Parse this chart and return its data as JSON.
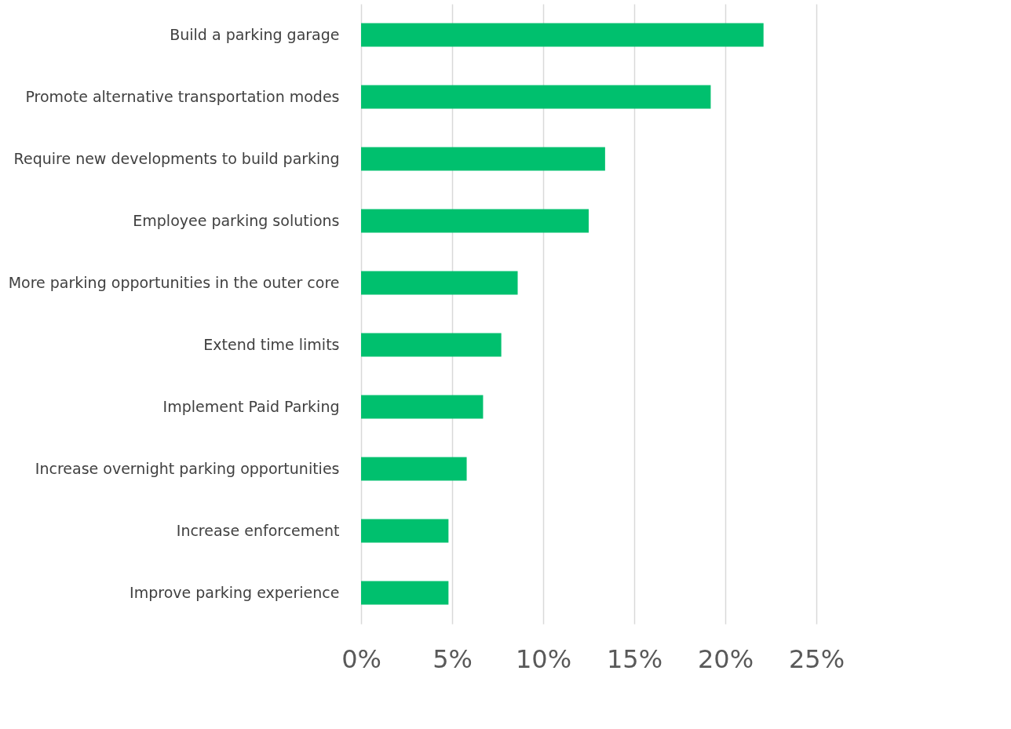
{
  "chart_data": {
    "type": "bar",
    "orientation": "horizontal",
    "categories": [
      "Build a parking garage",
      "Promote alternative transportation modes",
      "Require new developments to build parking",
      "Employee parking solutions",
      "More parking opportunities in the outer core",
      "Extend time limits",
      "Implement Paid Parking",
      "Increase overnight parking opportunities",
      "Increase enforcement",
      "Improve parking experience"
    ],
    "values": [
      22.1,
      19.2,
      13.4,
      12.5,
      8.6,
      7.7,
      6.7,
      5.8,
      4.8,
      4.8
    ],
    "color": "#00c06e",
    "xlim": [
      0,
      25
    ],
    "xticks": [
      {
        "value": 0,
        "label": "0%"
      },
      {
        "value": 5,
        "label": "5%"
      },
      {
        "value": 10,
        "label": "10%"
      },
      {
        "value": 15,
        "label": "15%"
      },
      {
        "value": 20,
        "label": "20%"
      },
      {
        "value": 25,
        "label": "25%"
      }
    ],
    "grid": "x"
  }
}
